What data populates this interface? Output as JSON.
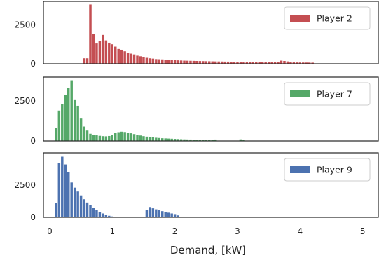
{
  "chart_data": [
    {
      "type": "bar",
      "legend": "Player 2",
      "color": "#c44e52",
      "legend_position": "top-right",
      "ylim": [
        0,
        4000
      ],
      "yticks": [
        "0",
        "2500"
      ],
      "grid": false,
      "x": [
        0.55,
        0.6,
        0.65,
        0.7,
        0.75,
        0.8,
        0.85,
        0.9,
        0.95,
        1.0,
        1.05,
        1.1,
        1.15,
        1.2,
        1.25,
        1.3,
        1.35,
        1.4,
        1.45,
        1.5,
        1.55,
        1.6,
        1.65,
        1.7,
        1.75,
        1.8,
        1.85,
        1.9,
        1.95,
        2.0,
        2.05,
        2.1,
        2.15,
        2.2,
        2.25,
        2.3,
        2.35,
        2.4,
        2.45,
        2.5,
        2.55,
        2.6,
        2.65,
        2.7,
        2.75,
        2.8,
        2.85,
        2.9,
        2.95,
        3.0,
        3.05,
        3.1,
        3.15,
        3.2,
        3.25,
        3.3,
        3.35,
        3.4,
        3.45,
        3.5,
        3.55,
        3.6,
        3.65,
        3.7,
        3.75,
        3.8,
        3.85,
        3.9,
        3.95,
        4.0,
        4.05,
        4.1,
        4.15,
        4.2
      ],
      "values": [
        350,
        350,
        3800,
        1900,
        1300,
        1450,
        1850,
        1500,
        1350,
        1250,
        1100,
        950,
        900,
        800,
        700,
        650,
        600,
        520,
        480,
        420,
        380,
        350,
        330,
        300,
        290,
        280,
        260,
        250,
        240,
        230,
        220,
        210,
        200,
        195,
        190,
        185,
        180,
        175,
        170,
        165,
        160,
        155,
        150,
        148,
        145,
        140,
        138,
        135,
        130,
        128,
        125,
        122,
        120,
        118,
        115,
        112,
        110,
        108,
        105,
        102,
        100,
        98,
        95,
        200,
        180,
        150,
        90,
        88,
        85,
        82,
        80,
        78,
        75,
        72
      ]
    },
    {
      "type": "bar",
      "legend": "Player 7",
      "color": "#55a868",
      "legend_position": "top-right",
      "ylim": [
        0,
        4000
      ],
      "yticks": [
        "0",
        "2500"
      ],
      "grid": false,
      "x": [
        0.1,
        0.15,
        0.2,
        0.25,
        0.3,
        0.35,
        0.4,
        0.45,
        0.5,
        0.55,
        0.6,
        0.65,
        0.7,
        0.75,
        0.8,
        0.85,
        0.9,
        0.95,
        1.0,
        1.05,
        1.1,
        1.15,
        1.2,
        1.25,
        1.3,
        1.35,
        1.4,
        1.45,
        1.5,
        1.55,
        1.6,
        1.65,
        1.7,
        1.75,
        1.8,
        1.85,
        1.9,
        1.95,
        2.0,
        2.05,
        2.1,
        2.15,
        2.2,
        2.25,
        2.3,
        2.35,
        2.4,
        2.45,
        2.5,
        2.55,
        2.6,
        2.65,
        3.05,
        3.1
      ],
      "values": [
        800,
        1900,
        2300,
        2900,
        3300,
        3800,
        2600,
        2200,
        1400,
        900,
        650,
        450,
        380,
        350,
        320,
        300,
        290,
        310,
        380,
        500,
        550,
        580,
        560,
        520,
        480,
        430,
        380,
        340,
        300,
        270,
        240,
        220,
        200,
        185,
        170,
        160,
        150,
        140,
        130,
        120,
        110,
        100,
        95,
        90,
        85,
        80,
        75,
        70,
        65,
        60,
        55,
        90,
        100,
        80
      ]
    },
    {
      "type": "bar",
      "legend": "Player 9",
      "color": "#4c72b0",
      "legend_position": "top-right",
      "ylim": [
        0,
        5000
      ],
      "yticks": [
        "0",
        "2500"
      ],
      "grid": false,
      "x": [
        0.1,
        0.15,
        0.2,
        0.25,
        0.3,
        0.35,
        0.4,
        0.45,
        0.5,
        0.55,
        0.6,
        0.65,
        0.7,
        0.75,
        0.8,
        0.85,
        0.9,
        0.95,
        1.0,
        1.05,
        1.55,
        1.6,
        1.65,
        1.7,
        1.75,
        1.8,
        1.85,
        1.9,
        1.95,
        2.0,
        2.05
      ],
      "values": [
        1100,
        4200,
        4700,
        4100,
        3500,
        2700,
        2300,
        2000,
        1700,
        1400,
        1150,
        950,
        750,
        550,
        400,
        300,
        200,
        120,
        70,
        30,
        550,
        800,
        700,
        620,
        550,
        480,
        420,
        360,
        300,
        250,
        150
      ]
    }
  ],
  "x_axis": {
    "label": "Demand, [kW]",
    "ticks": [
      "0",
      "1",
      "2",
      "3",
      "4",
      "5"
    ],
    "xlim": [
      -0.1,
      5.25
    ]
  }
}
